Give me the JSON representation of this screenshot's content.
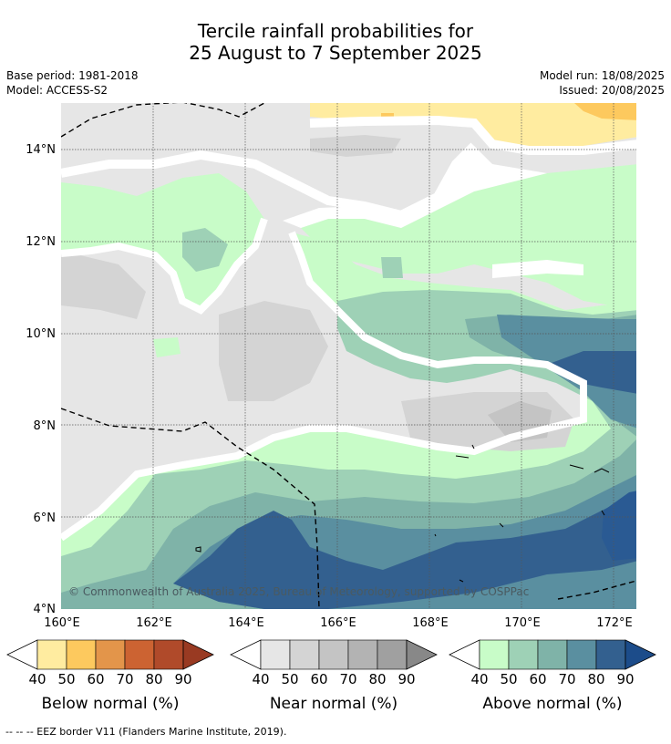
{
  "title_line1": "Tercile rainfall probabilities for",
  "title_line2": "25 August to 7 September 2025",
  "meta": {
    "base_period": "Base period: 1981-2018",
    "model": "Model: ACCESS-S2",
    "model_run": "Model run: 18/08/2025",
    "issued": "Issued: 20/08/2025"
  },
  "map": {
    "copyright": "© Commonwealth of Australia 2025, Bureau of Meteorology, supported by COSPPac",
    "lat_labels": [
      "14°N",
      "12°N",
      "10°N",
      "8°N",
      "6°N",
      "4°N"
    ],
    "lon_labels": [
      "160°E",
      "162°E",
      "164°E",
      "166°E",
      "168°E",
      "170°E",
      "172°E"
    ]
  },
  "legends": [
    {
      "title": "Below normal (%)",
      "ticks": [
        "40",
        "50",
        "60",
        "70",
        "80",
        "90"
      ],
      "colors": [
        "#ffeca0",
        "#fdc95e",
        "#e3954a",
        "#cc6332",
        "#b04a2a",
        "#993a22"
      ]
    },
    {
      "title": "Near normal (%)",
      "ticks": [
        "40",
        "50",
        "60",
        "70",
        "80",
        "90"
      ],
      "colors": [
        "#e6e6e6",
        "#d4d4d4",
        "#c4c4c4",
        "#b3b3b3",
        "#a0a0a0",
        "#888888"
      ]
    },
    {
      "title": "Above normal (%)",
      "ticks": [
        "40",
        "50",
        "60",
        "70",
        "80",
        "90"
      ],
      "colors": [
        "#c8fcc8",
        "#9ed1b6",
        "#7fb3a8",
        "#5a8fa0",
        "#33608f",
        "#1c4c8a"
      ]
    }
  ],
  "footnote": "--  --  -- EEZ border V11 (Flanders Marine Institute, 2019)."
}
